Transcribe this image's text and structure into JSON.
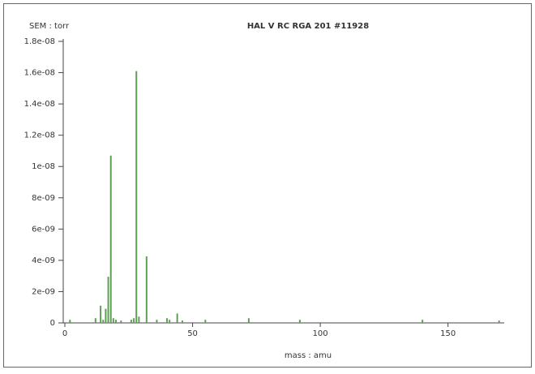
{
  "chart_data": {
    "type": "stick",
    "title": "HAL V RC RGA 201 #11928",
    "y_label": "SEM : torr",
    "x_label": "mass : amu",
    "color": "#5e9e55",
    "x": [
      2,
      12,
      14,
      15,
      16,
      17,
      18,
      19,
      20,
      22,
      26,
      27,
      28,
      29,
      32,
      36,
      40,
      41,
      44,
      46,
      55,
      72,
      92,
      140,
      170
    ],
    "values": [
      2e-10,
      3e-10,
      1.1e-09,
      2e-10,
      9e-10,
      2.95e-09,
      1.07e-08,
      3e-10,
      2e-10,
      1.5e-10,
      2e-10,
      3e-10,
      1.61e-08,
      4e-10,
      4.25e-09,
      2e-10,
      3e-10,
      2e-10,
      6e-10,
      1.5e-10,
      2e-10,
      3e-10,
      2e-10,
      2e-10,
      1.5e-10
    ],
    "xlim": [
      0,
      172
    ],
    "ylim": [
      0,
      1.8e-08
    ],
    "xticks": [
      0,
      50,
      100,
      150
    ],
    "yticks": [
      0,
      {
        "value": 2e-09,
        "label": "2e-09"
      },
      {
        "value": 4e-09,
        "label": "4e-09"
      },
      {
        "value": 6e-09,
        "label": "6e-09"
      },
      {
        "value": 8e-09,
        "label": "8e-09"
      },
      {
        "value": 1e-08,
        "label": "1e-08"
      },
      {
        "value": 1.2e-08,
        "label": "1.2e-08"
      },
      {
        "value": 1.4e-08,
        "label": "1.4e-08"
      },
      {
        "value": 1.6e-08,
        "label": "1.6e-08"
      },
      {
        "value": 1.8e-08,
        "label": "1.8e-08"
      }
    ]
  }
}
